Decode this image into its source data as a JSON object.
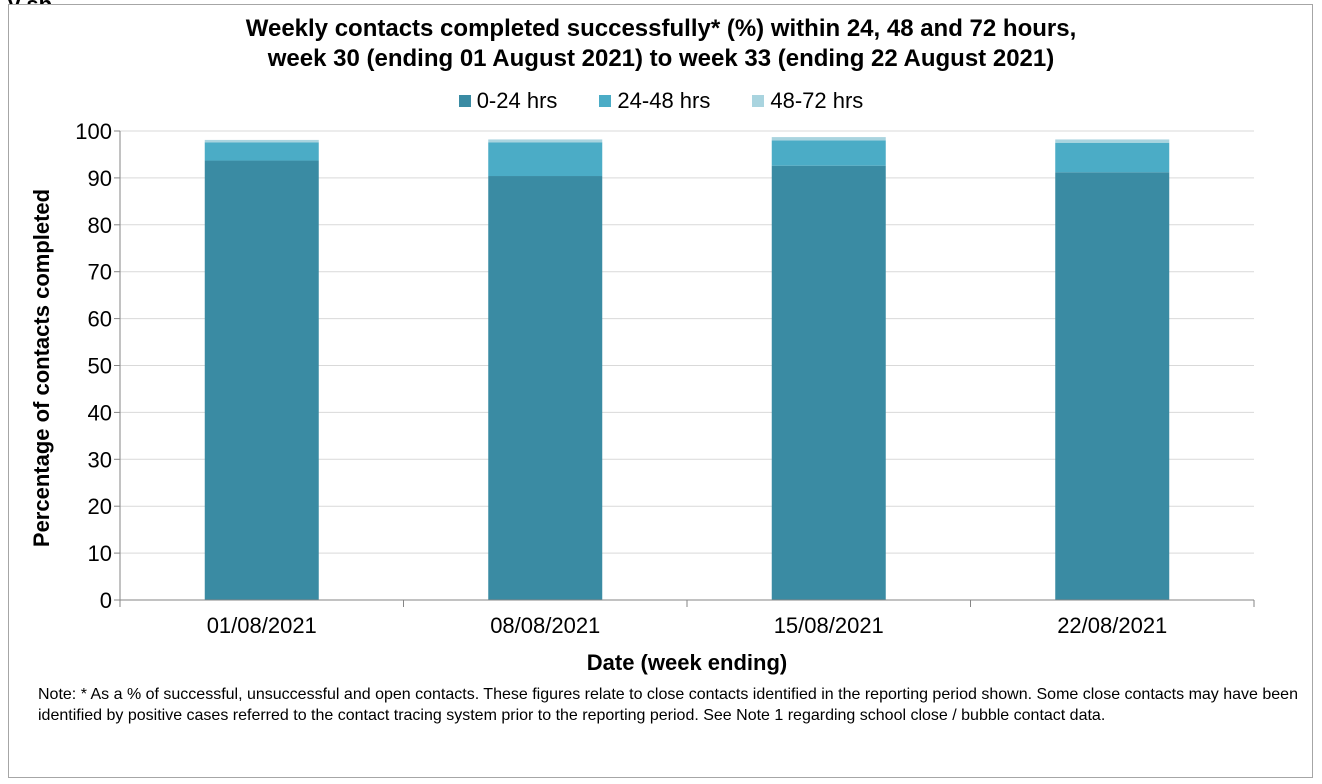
{
  "page": {
    "top_fragment": "y sp",
    "note": "Note: * As a % of successful, unsuccessful and open contacts. These figures relate to close contacts identified in the reporting period shown. Some close contacts may have been identified by positive cases referred to the contact tracing system prior to the reporting period.   See Note 1 regarding school close / bubble contact data."
  },
  "chart_data": {
    "type": "bar",
    "stacked": true,
    "title_line1": "Weekly contacts completed successfully* (%) within 24, 48 and 72 hours,",
    "title_line2": "week 30 (ending 01 August 2021) to week 33 (ending 22 August 2021)",
    "xlabel": "Date (week ending)",
    "ylabel": "Percentage of contacts completed",
    "ylim": [
      0,
      100
    ],
    "yticks": [
      0,
      10,
      20,
      30,
      40,
      50,
      60,
      70,
      80,
      90,
      100
    ],
    "grid": true,
    "legend_position": "top",
    "categories": [
      "01/08/2021",
      "08/08/2021",
      "15/08/2021",
      "22/08/2021"
    ],
    "series": [
      {
        "name": "0-24 hrs",
        "color": "#3a8ba3",
        "values": [
          93.7,
          90.4,
          92.6,
          91.2
        ]
      },
      {
        "name": "24-48 hrs",
        "color": "#4bacc6",
        "values": [
          3.9,
          7.2,
          5.4,
          6.3
        ]
      },
      {
        "name": "48-72 hrs",
        "color": "#a9d4df",
        "values": [
          0.5,
          0.6,
          0.7,
          0.7
        ]
      }
    ]
  }
}
